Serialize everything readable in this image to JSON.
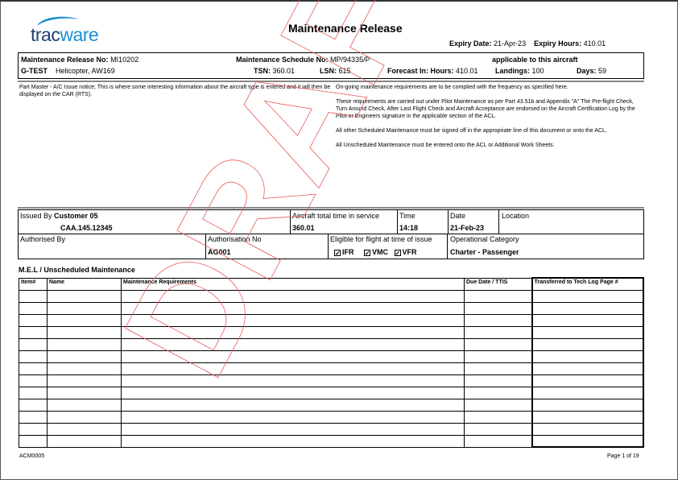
{
  "logo": {
    "text_dark": "trac",
    "text_light": "ware"
  },
  "title": "Maintenance Release",
  "expiry": {
    "date_label": "Expiry Date:",
    "date": "21-Apr-23",
    "hours_label": "Expiry Hours:",
    "hours": "410.01"
  },
  "header": {
    "release_no_label": "Maintenance Release No:",
    "release_no": "MI10202",
    "schedule_no_label": "Maintenance Schedule No:",
    "schedule_no": "MP/94335/P",
    "applicable": "applicable to this aircraft",
    "registration": "G-TEST",
    "aircraft_type": "Helicopter, AW169",
    "tsn_label": "TSN:",
    "tsn": "360.01",
    "lsn_label": "LSN:",
    "lsn": "615",
    "forecast_label": "Forecast In: Hours:",
    "forecast_hours": "410.01",
    "landings_label": "Landings:",
    "landings": "100",
    "days_label": "Days:",
    "days": "59"
  },
  "notes": {
    "part_master": "Part Master - A/C Issue notice; This is where some interesting information about the aircraft type is entered and it will then be displayed on the CAR (RTS).",
    "p1": "On-going maintenance requirements are to be complied with the frequency as specified here.",
    "p2": "These requirements are carried out under Pilot Maintenance as per Part 43.51b and Appendix \"A\" The Pre-flight Check, Turn Around Check, After Last Flight Check and Aircraft Acceptance are endorsed on the Aircraft Certification Log by the Pilot or Engineers signature in the applicable section of the ACL.",
    "p3": "All other Scheduled Maintenance must be signed off in the appropriate line of this document or onto the ACL.",
    "p4": "All Unscheduled Maintenance must be entered onto the ACL or Additional Work Sheets."
  },
  "issue": {
    "issued_by_label": "Issued By",
    "issued_by": "Customer 05",
    "issued_ref": "CAA.145.12345",
    "total_time_label": "Aircraft total time in service",
    "total_time": "360.01",
    "time_label": "Time",
    "time": "14:18",
    "date_label": "Date",
    "date": "21-Feb-23",
    "location_label": "Location",
    "authorised_by_label": "Authorised By",
    "auth_no_label": "Authorisation No",
    "auth_no": "AG001",
    "eligible_label": "Eligible for flight at time of issue",
    "flags": [
      {
        "label": "IFR",
        "checked": true
      },
      {
        "label": "VMC",
        "checked": true
      },
      {
        "label": "VFR",
        "checked": true
      }
    ],
    "op_cat_label": "Operational Category",
    "op_cat": "Charter - Passenger"
  },
  "mel": {
    "title": "M.E.L / Unscheduled Maintenance",
    "columns": [
      "Item#",
      "Name",
      "Maintenance Requirements",
      "Due Date / TTIS",
      "Transferred to Tech Log Page #"
    ],
    "row_count": 13
  },
  "watermark": "DRAFT",
  "footer": {
    "code": "ACM0005",
    "page": "Page 1 of 19"
  },
  "colors": {
    "logo_blue": "#1a8fd0",
    "logo_dark": "#1c3f6e",
    "watermark": "#e85a5a"
  }
}
